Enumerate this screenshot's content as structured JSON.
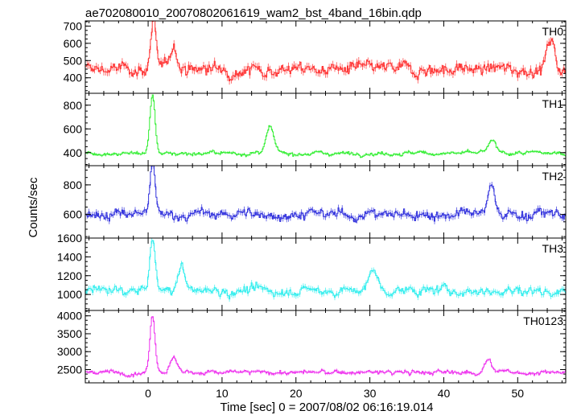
{
  "chart_data": {
    "type": "line",
    "title": "ae702080010_20070802061619_wam2_bst_4band_16bin.qdp",
    "xlabel": "Time [sec] 0 = 2007/08/02 06:16:19.014",
    "ylabel": "Counts/sec",
    "xlim": [
      -8.5,
      56.5
    ],
    "x_ticks": [
      0,
      10,
      20,
      30,
      40,
      50
    ],
    "grid": false,
    "legend": "none",
    "panels": [
      {
        "name": "TH0",
        "color": "#ff3333",
        "ylim": [
          310,
          730
        ],
        "y_ticks": [
          400,
          500,
          600,
          700
        ],
        "baseline": 450,
        "noise": 40,
        "peaks": [
          {
            "x": 0.7,
            "y": 715
          },
          {
            "x": 3.5,
            "y": 590
          },
          {
            "x": 54.5,
            "y": 620
          }
        ]
      },
      {
        "name": "TH1",
        "color": "#33ee33",
        "ylim": [
          290,
          900
        ],
        "y_ticks": [
          400,
          600,
          800
        ],
        "baseline": 395,
        "noise": 18,
        "peaks": [
          {
            "x": 0.6,
            "y": 880
          },
          {
            "x": 16.5,
            "y": 610
          },
          {
            "x": 46.5,
            "y": 500
          }
        ]
      },
      {
        "name": "TH2",
        "color": "#3333dd",
        "ylim": [
          440,
          930
        ],
        "y_ticks": [
          600,
          800
        ],
        "baseline": 600,
        "noise": 38,
        "peaks": [
          {
            "x": 0.6,
            "y": 920
          },
          {
            "x": 46.5,
            "y": 790
          }
        ]
      },
      {
        "name": "TH3",
        "color": "#33eeee",
        "ylim": [
          830,
          1600
        ],
        "y_ticks": [
          1000,
          1200,
          1400,
          1600
        ],
        "baseline": 1040,
        "noise": 55,
        "peaks": [
          {
            "x": 0.6,
            "y": 1580
          },
          {
            "x": 4.5,
            "y": 1290
          },
          {
            "x": 30.5,
            "y": 1280
          }
        ]
      },
      {
        "name": "TH0123",
        "color": "#ee33ee",
        "ylim": [
          2130,
          4150
        ],
        "y_ticks": [
          2500,
          3000,
          3500,
          4000
        ],
        "baseline": 2420,
        "noise": 70,
        "peaks": [
          {
            "x": 0.6,
            "y": 4050
          },
          {
            "x": 3.5,
            "y": 2830
          },
          {
            "x": 46.0,
            "y": 2780
          }
        ]
      }
    ]
  }
}
